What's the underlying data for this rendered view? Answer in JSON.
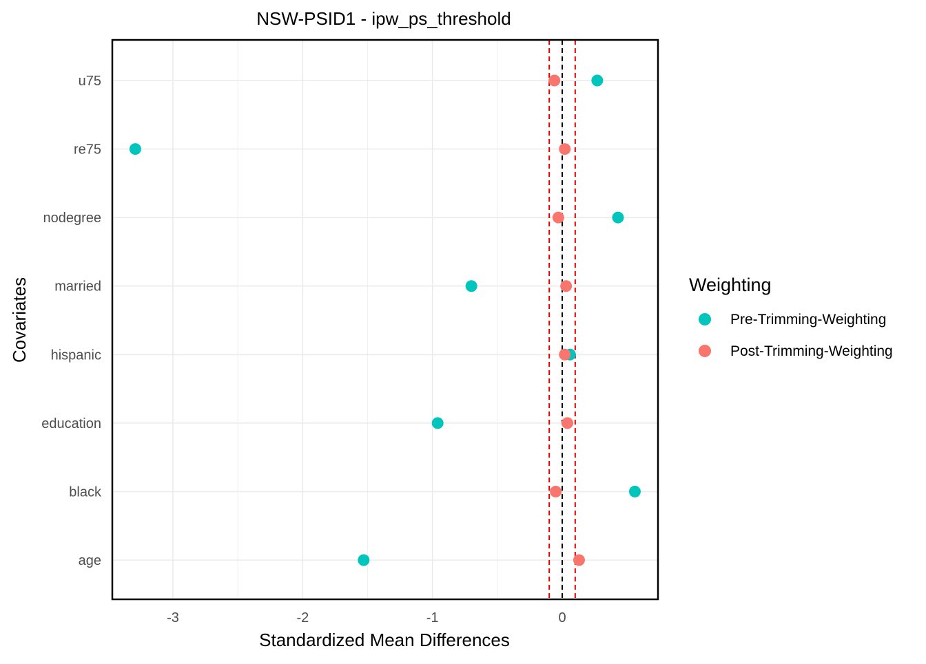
{
  "chart_data": {
    "type": "scatter",
    "title": "NSW-PSID1 - ipw_ps_threshold",
    "xlabel": "Standardized Mean Differences",
    "ylabel": "Covariates",
    "categories": [
      "age",
      "black",
      "education",
      "hispanic",
      "married",
      "nodegree",
      "re75",
      "u75"
    ],
    "xlim": [
      -3.5,
      0.7
    ],
    "xticks": [
      -3,
      -2,
      -1,
      0
    ],
    "xtick_labels": [
      "-3",
      "-2",
      "-1",
      "0"
    ],
    "grid": true,
    "reference_lines": [
      {
        "x": 0,
        "style": "dashed",
        "color": "#000000"
      },
      {
        "x": -0.1,
        "style": "dashed",
        "color": "#e00000"
      },
      {
        "x": 0.1,
        "style": "dashed",
        "color": "#e00000"
      }
    ],
    "legend": {
      "title": "Weighting",
      "placement": "right"
    },
    "series": [
      {
        "name": "Pre-Trimming-Weighting",
        "color": "#00c5bd",
        "values": [
          -1.53,
          0.56,
          -0.96,
          0.06,
          -0.7,
          0.43,
          -3.29,
          0.27
        ]
      },
      {
        "name": "Post-Trimming-Weighting",
        "color": "#f8766d",
        "values": [
          0.13,
          -0.05,
          0.04,
          0.02,
          0.03,
          -0.03,
          0.02,
          -0.06
        ]
      }
    ]
  }
}
